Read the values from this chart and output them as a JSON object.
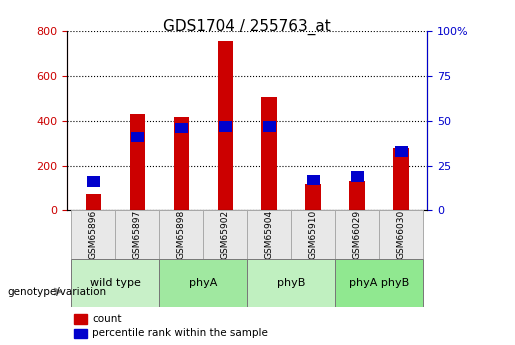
{
  "title": "GDS1704 / 255763_at",
  "samples": [
    "GSM65896",
    "GSM65897",
    "GSM65898",
    "GSM65902",
    "GSM65904",
    "GSM65910",
    "GSM66029",
    "GSM66030"
  ],
  "count_values": [
    75,
    430,
    415,
    755,
    505,
    120,
    130,
    280
  ],
  "percentile_values": [
    16,
    41,
    46,
    47,
    47,
    17,
    19,
    33
  ],
  "groups": [
    {
      "label": "wild type",
      "color": "#c8f0c8",
      "samples": [
        0,
        1
      ]
    },
    {
      "label": "phyA",
      "color": "#a0e8a0",
      "samples": [
        2,
        3
      ]
    },
    {
      "label": "phyB",
      "color": "#c0f0c0",
      "samples": [
        4,
        5
      ]
    },
    {
      "label": "phyA phyB",
      "color": "#90e890",
      "samples": [
        6,
        7
      ]
    }
  ],
  "genotype_label": "genotype/variation",
  "left_ylim": [
    0,
    800
  ],
  "right_ylim": [
    0,
    100
  ],
  "left_yticks": [
    0,
    200,
    400,
    600,
    800
  ],
  "right_yticks": [
    0,
    25,
    50,
    75,
    100
  ],
  "right_yticklabels": [
    "0",
    "25",
    "50",
    "75",
    "100%"
  ],
  "bar_color": "#cc0000",
  "percentile_color": "#0000cc",
  "count_label": "count",
  "percentile_label": "percentile rank within the sample",
  "sample_box_color": "#e8e8e8",
  "bar_width": 0.35,
  "tick_label_color_left": "#cc0000",
  "tick_label_color_right": "#0000cc"
}
